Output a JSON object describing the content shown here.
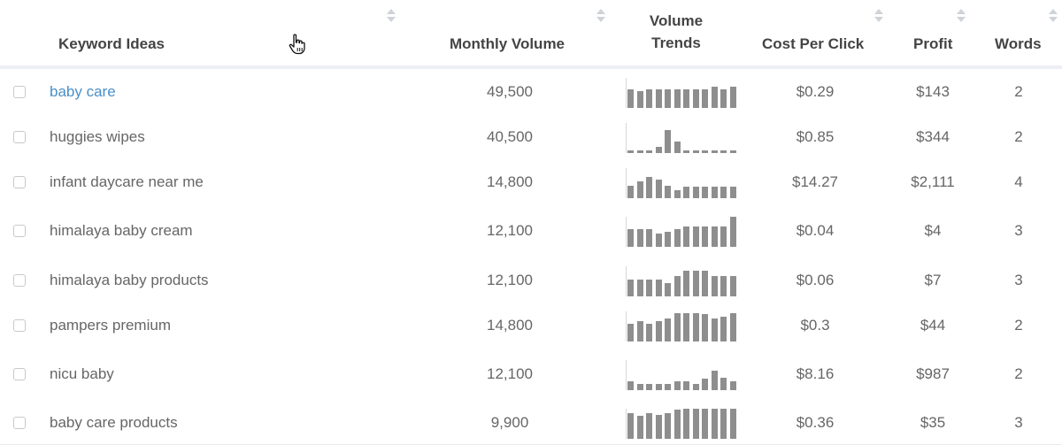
{
  "header": {
    "keyword_ideas": "Keyword Ideas",
    "monthly_volume": "Monthly Volume",
    "volume_trends_line1": "Volume",
    "volume_trends_line2": "Trends",
    "cost_per_click": "Cost Per Click",
    "profit": "Profit",
    "words": "Words"
  },
  "rows": [
    {
      "keyword": "baby care",
      "volume": "49,500",
      "cpc": "$0.29",
      "profit": "$143",
      "words": "2",
      "link": true,
      "trend": [
        0.62,
        0.55,
        0.62,
        0.62,
        0.62,
        0.62,
        0.62,
        0.62,
        0.62,
        0.72,
        0.62,
        0.7
      ]
    },
    {
      "keyword": "huggies wipes",
      "volume": "40,500",
      "cpc": "$0.85",
      "profit": "$344",
      "words": "2",
      "link": false,
      "trend": [
        0.1,
        0.1,
        0.1,
        0.2,
        0.75,
        0.38,
        0.1,
        0.1,
        0.1,
        0.1,
        0.1,
        0.1
      ]
    },
    {
      "keyword": "infant daycare near me",
      "volume": "14,800",
      "cpc": "$14.27",
      "profit": "$2,111",
      "words": "4",
      "link": false,
      "trend": [
        0.4,
        0.55,
        0.72,
        0.62,
        0.42,
        0.25,
        0.38,
        0.38,
        0.38,
        0.38,
        0.38,
        0.38
      ]
    },
    {
      "keyword": "himalaya baby cream",
      "volume": "12,100",
      "cpc": "$0.04",
      "profit": "$4",
      "words": "3",
      "link": false,
      "trend": [
        0.58,
        0.58,
        0.58,
        0.45,
        0.5,
        0.58,
        0.68,
        0.68,
        0.68,
        0.68,
        0.68,
        1.0
      ]
    },
    {
      "keyword": "himalaya baby products",
      "volume": "12,100",
      "cpc": "$0.06",
      "profit": "$7",
      "words": "3",
      "link": false,
      "trend": [
        0.55,
        0.55,
        0.55,
        0.55,
        0.45,
        0.68,
        0.85,
        0.85,
        0.85,
        0.68,
        0.68,
        0.68
      ]
    },
    {
      "keyword": "pampers premium",
      "volume": "14,800",
      "cpc": "$0.3",
      "profit": "$44",
      "words": "2",
      "link": false,
      "trend": [
        0.6,
        0.68,
        0.6,
        0.68,
        0.75,
        0.95,
        0.95,
        0.95,
        0.9,
        0.75,
        0.82,
        0.95
      ]
    },
    {
      "keyword": "nicu baby",
      "volume": "12,100",
      "cpc": "$8.16",
      "profit": "$987",
      "words": "2",
      "link": false,
      "trend": [
        0.3,
        0.22,
        0.22,
        0.22,
        0.22,
        0.3,
        0.3,
        0.22,
        0.38,
        0.65,
        0.4,
        0.3
      ]
    },
    {
      "keyword": "baby care products",
      "volume": "9,900",
      "cpc": "$0.36",
      "profit": "$35",
      "words": "3",
      "link": false,
      "trend": [
        0.85,
        0.75,
        0.85,
        0.78,
        0.85,
        0.98,
        1.0,
        1.0,
        1.0,
        1.0,
        1.0,
        1.0
      ]
    }
  ],
  "colors": {
    "link": "#4a8fc8",
    "bar": "#8e8e8e",
    "header_rule": "#eceff6"
  },
  "icons": {
    "sort": "sort-arrows-icon",
    "cursor": "hand-pointer-icon",
    "checkbox": "checkbox-icon"
  }
}
